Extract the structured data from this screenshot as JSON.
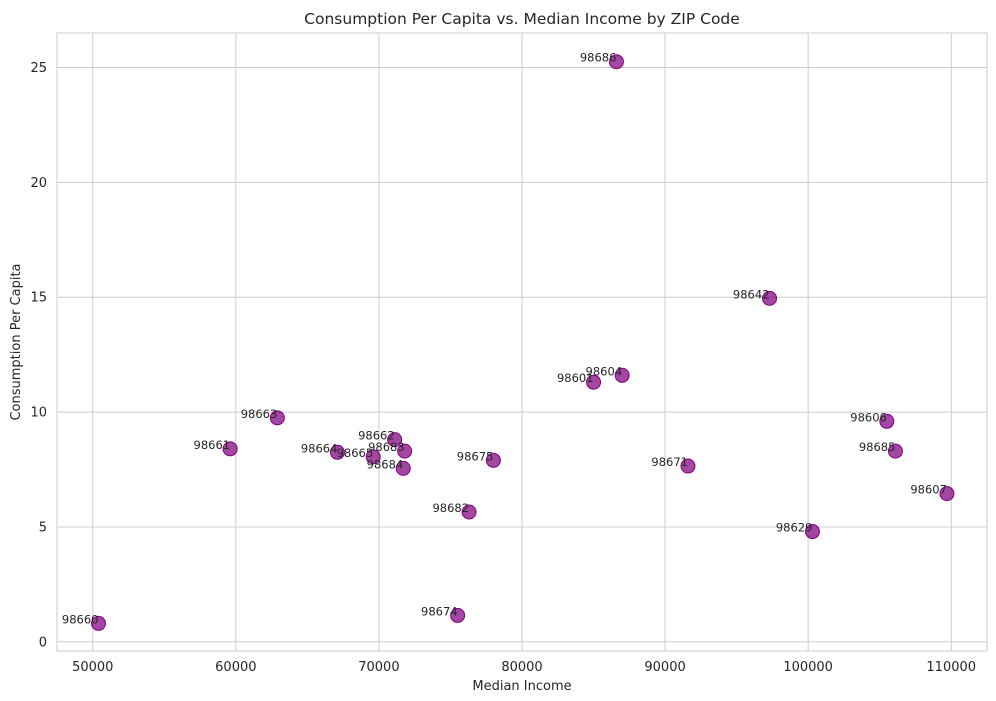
{
  "chart_data": {
    "type": "scatter",
    "title": "Consumption Per Capita vs. Median Income by ZIP Code",
    "xlabel": "Median Income",
    "ylabel": "Consumption Per Capita",
    "xlim": [
      47500,
      112500
    ],
    "ylim": [
      -0.4,
      26.5
    ],
    "xticks": [
      50000,
      60000,
      70000,
      80000,
      90000,
      100000,
      110000
    ],
    "yticks": [
      0,
      5,
      10,
      15,
      20,
      25
    ],
    "grid": true,
    "marker_color": "#800080",
    "points": [
      {
        "label": "98686",
        "x": 86600,
        "y": 25.25
      },
      {
        "label": "98642",
        "x": 97300,
        "y": 14.95
      },
      {
        "label": "98604",
        "x": 87000,
        "y": 11.6
      },
      {
        "label": "98601",
        "x": 85000,
        "y": 11.3
      },
      {
        "label": "98663",
        "x": 62900,
        "y": 9.75
      },
      {
        "label": "98606",
        "x": 105500,
        "y": 9.6
      },
      {
        "label": "98662",
        "x": 71100,
        "y": 8.8
      },
      {
        "label": "98661",
        "x": 59600,
        "y": 8.4
      },
      {
        "label": "98683",
        "x": 71800,
        "y": 8.3
      },
      {
        "label": "98685",
        "x": 106100,
        "y": 8.3
      },
      {
        "label": "98664",
        "x": 67100,
        "y": 8.25
      },
      {
        "label": "98665",
        "x": 69600,
        "y": 8.05
      },
      {
        "label": "98675",
        "x": 78000,
        "y": 7.9
      },
      {
        "label": "98671",
        "x": 91600,
        "y": 7.65
      },
      {
        "label": "98684",
        "x": 71700,
        "y": 7.55
      },
      {
        "label": "98607",
        "x": 109700,
        "y": 6.45
      },
      {
        "label": "98682",
        "x": 76300,
        "y": 5.65
      },
      {
        "label": "98629",
        "x": 100300,
        "y": 4.8
      },
      {
        "label": "98674",
        "x": 75500,
        "y": 1.15
      },
      {
        "label": "98660",
        "x": 50400,
        "y": 0.8
      }
    ]
  }
}
